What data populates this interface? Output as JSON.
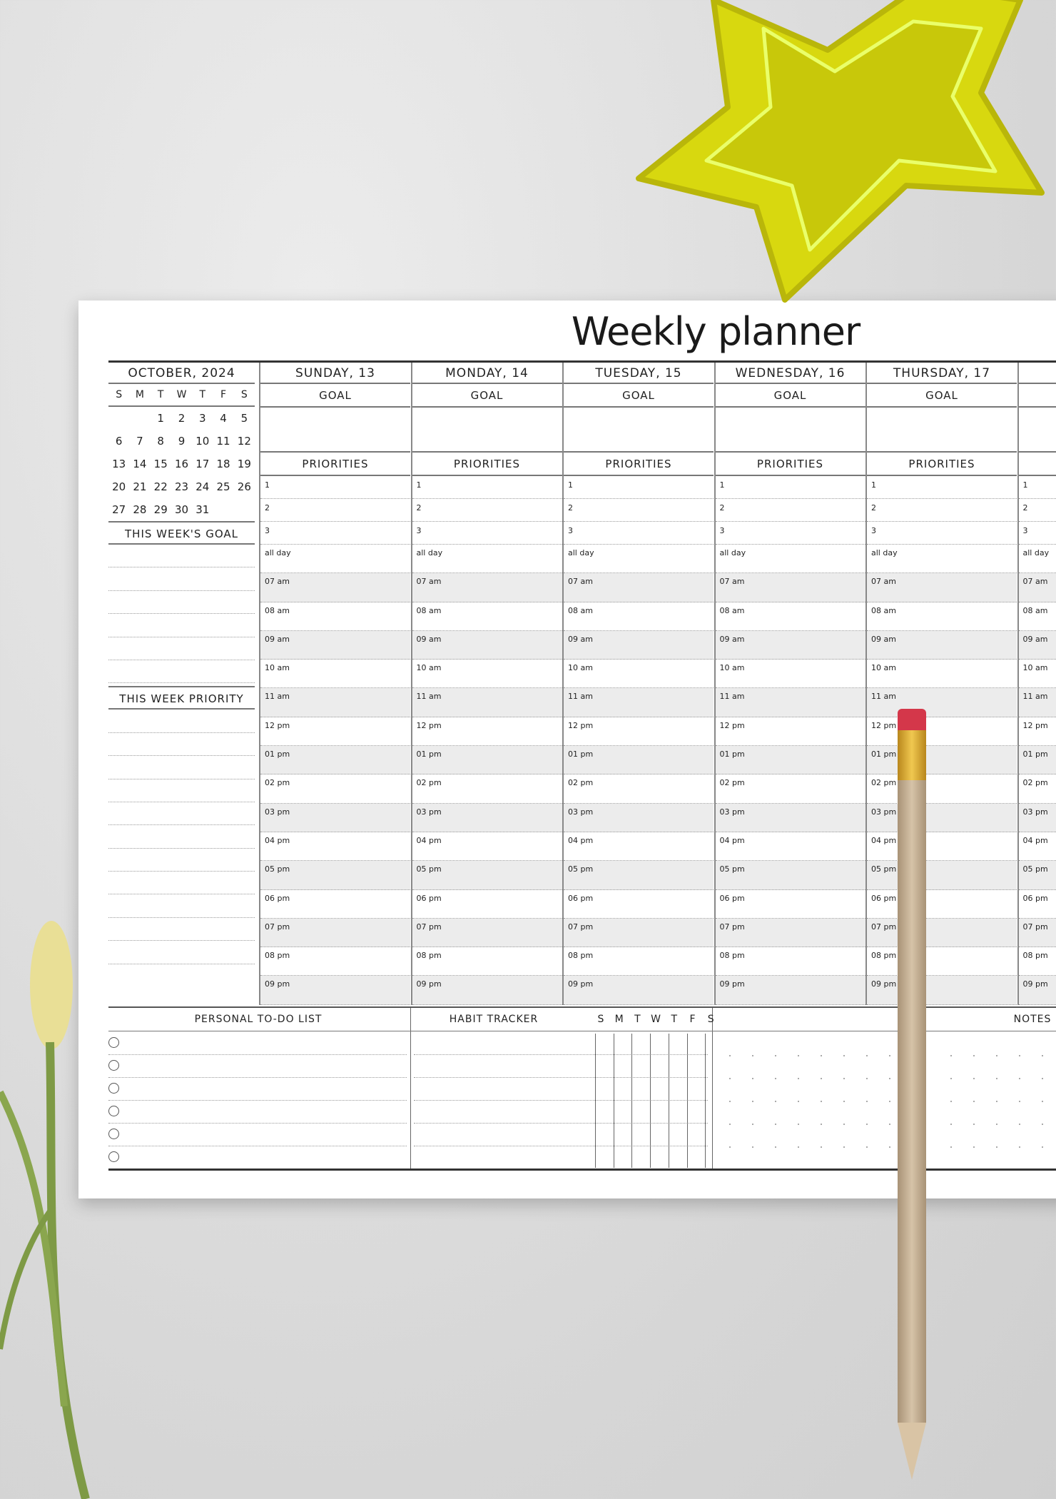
{
  "title": "Weekly planner",
  "calendar": {
    "month": "OCTOBER, 2024",
    "weekdays": [
      "S",
      "M",
      "T",
      "W",
      "T",
      "F",
      "S"
    ],
    "days": [
      "",
      "",
      "1",
      "2",
      "3",
      "4",
      "5",
      "6",
      "7",
      "8",
      "9",
      "10",
      "11",
      "12",
      "13",
      "14",
      "15",
      "16",
      "17",
      "18",
      "19",
      "20",
      "21",
      "22",
      "23",
      "24",
      "25",
      "26",
      "27",
      "28",
      "29",
      "30",
      "31",
      "",
      ""
    ]
  },
  "week_goal_label": "THIS WEEK'S GOAL",
  "week_priority_label": "THIS WEEK PRIORITY",
  "days": [
    {
      "name": "SUNDAY, 13"
    },
    {
      "name": "MONDAY, 14"
    },
    {
      "name": "TUESDAY, 15"
    },
    {
      "name": "WEDNESDAY, 16"
    },
    {
      "name": "THURSDAY, 17"
    },
    {
      "name": ""
    }
  ],
  "goal_label": "GOAL",
  "priorities_label": "PRIORITIES",
  "priority_numbers": [
    "1",
    "2",
    "3"
  ],
  "all_day_label": "all day",
  "hours": [
    "07 am",
    "08 am",
    "09 am",
    "10 am",
    "11 am",
    "12 pm",
    "01 pm",
    "02 pm",
    "03 pm",
    "04 pm",
    "05 pm",
    "06 pm",
    "07 pm",
    "08 pm",
    "09 pm"
  ],
  "bottom": {
    "todo_label": "PERSONAL TO-DO LIST",
    "habit_label": "HABIT TRACKER",
    "habit_days": [
      "S",
      "M",
      "T",
      "W",
      "T",
      "F",
      "S"
    ],
    "notes_label": "NOTES"
  },
  "colors": {
    "star": "#d8d80f",
    "pencil_eraser": "#d4374a",
    "pencil_ferrule": "#d8a52a",
    "pencil_body": "#c9b49a"
  }
}
